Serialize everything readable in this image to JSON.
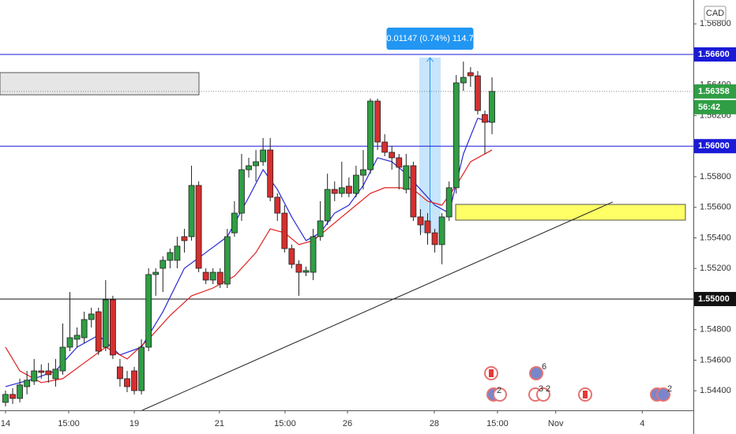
{
  "chart_data": {
    "type": "candlestick",
    "currency": "CAD",
    "xlim": [
      -0.77,
      96.14
    ],
    "xticks": [
      {
        "value": 0,
        "label": "14"
      },
      {
        "value": 8.83,
        "label": "15:00"
      },
      {
        "value": 18,
        "label": "19"
      },
      {
        "value": 29.9,
        "label": "21"
      },
      {
        "value": 39.07,
        "label": "15:00"
      },
      {
        "value": 47.8,
        "label": "26"
      },
      {
        "value": 59.93,
        "label": "28"
      },
      {
        "value": 68.76,
        "label": "15:00"
      },
      {
        "value": 76.9,
        "label": "Nov"
      },
      {
        "value": 89,
        "label": "4"
      }
    ],
    "ylim": [
      1.54272,
      1.56956
    ],
    "yticks": [
      {
        "value": 1.568,
        "label": "1.56800"
      },
      {
        "value": 1.564,
        "label": "1.56400"
      },
      {
        "value": 1.562,
        "label": "1.56200"
      },
      {
        "value": 1.558,
        "label": "1.55800"
      },
      {
        "value": 1.556,
        "label": "1.55600"
      },
      {
        "value": 1.554,
        "label": "1.55400"
      },
      {
        "value": 1.552,
        "label": "1.55200"
      },
      {
        "value": 1.548,
        "label": "1.54800"
      },
      {
        "value": 1.546,
        "label": "1.54600"
      },
      {
        "value": 1.544,
        "label": "1.54400"
      }
    ],
    "up_color": "#2f9e44",
    "down_color": "#d62f2f",
    "open": [
      1.54324,
      1.54376,
      1.5435,
      1.54427,
      1.54463,
      1.5453,
      1.5453,
      1.54479,
      1.5453,
      1.54685,
      1.54737,
      1.54747,
      1.54866,
      1.54917,
      1.54685,
      1.54995,
      1.54556,
      1.54479,
      1.5453,
      1.54401,
      1.54685,
      1.5516,
      1.55201,
      1.55253,
      1.55253,
      1.55408,
      1.55408,
      1.55743,
      1.55175,
      1.55124,
      1.55175,
      1.55098,
      1.55433,
      1.55562,
      1.55846,
      1.55872,
      1.55898,
      1.55975,
      1.55666,
      1.55562,
      1.5533,
      1.55227,
      1.55175,
      1.55175,
      1.55408,
      1.55511,
      1.55717,
      1.55691,
      1.55738,
      1.55691,
      1.5581,
      1.55846,
      1.56295,
      1.56027,
      1.5596,
      1.55924,
      1.55717,
      1.55872,
      1.55537,
      1.55511,
      1.55433,
      1.55356,
      1.55537,
      1.55728,
      1.56414,
      1.56481,
      1.5646,
      1.56207,
      1.56156
    ],
    "high": [
      1.54401,
      1.54417,
      1.54479,
      1.5453,
      1.54608,
      1.54572,
      1.54582,
      1.54608,
      1.5484,
      1.55046,
      1.54814,
      1.54917,
      1.54943,
      1.54943,
      1.55124,
      1.55021,
      1.54608,
      1.5453,
      1.54556,
      1.54737,
      1.55201,
      1.55201,
      1.55279,
      1.5533,
      1.55408,
      1.55459,
      1.55872,
      1.55769,
      1.55201,
      1.55201,
      1.55201,
      1.55459,
      1.5564,
      1.55949,
      1.55924,
      1.55975,
      1.56053,
      1.56053,
      1.55691,
      1.55614,
      1.55356,
      1.55253,
      1.55212,
      1.55459,
      1.5564,
      1.5582,
      1.55769,
      1.55898,
      1.55795,
      1.55872,
      1.55975,
      1.56311,
      1.56311,
      1.56078,
      1.56001,
      1.55949,
      1.55949,
      1.55898,
      1.55588,
      1.55562,
      1.55459,
      1.55562,
      1.55769,
      1.56465,
      1.56553,
      1.56517,
      1.56491,
      1.56233,
      1.5645
    ],
    "low": [
      1.54298,
      1.54314,
      1.54324,
      1.54376,
      1.54438,
      1.54479,
      1.54453,
      1.54427,
      1.54505,
      1.54659,
      1.54685,
      1.54711,
      1.54814,
      1.54634,
      1.54659,
      1.54608,
      1.54427,
      1.54391,
      1.54376,
      1.54376,
      1.54659,
      1.55021,
      1.55046,
      1.55201,
      1.55201,
      1.55304,
      1.55382,
      1.55175,
      1.55098,
      1.55098,
      1.55072,
      1.55072,
      1.55408,
      1.55511,
      1.55795,
      1.55769,
      1.55872,
      1.5564,
      1.55511,
      1.55304,
      1.55201,
      1.55021,
      1.5515,
      1.55124,
      1.55382,
      1.55485,
      1.5564,
      1.55666,
      1.55666,
      1.55666,
      1.55717,
      1.5582,
      1.55975,
      1.55934,
      1.55846,
      1.55717,
      1.55691,
      1.55511,
      1.55418,
      1.55356,
      1.55304,
      1.55227,
      1.55511,
      1.55691,
      1.56362,
      1.56388,
      1.56207,
      1.55949,
      1.56078
    ],
    "close": [
      1.54376,
      1.5435,
      1.54438,
      1.54469,
      1.5453,
      1.5452,
      1.54505,
      1.54541,
      1.54685,
      1.54747,
      1.54763,
      1.54866,
      1.54902,
      1.54659,
      1.54995,
      1.54634,
      1.54479,
      1.54427,
      1.54401,
      1.54685,
      1.5516,
      1.55175,
      1.55253,
      1.55304,
      1.55346,
      1.55382,
      1.55743,
      1.55201,
      1.55124,
      1.55175,
      1.55098,
      1.55408,
      1.55562,
      1.55846,
      1.55872,
      1.55898,
      1.55975,
      1.55666,
      1.55562,
      1.5533,
      1.55227,
      1.55175,
      1.55186,
      1.55408,
      1.55511,
      1.55717,
      1.55691,
      1.55728,
      1.55691,
      1.5581,
      1.55846,
      1.56295,
      1.56027,
      1.5596,
      1.55924,
      1.55862,
      1.55872,
      1.55537,
      1.55485,
      1.55433,
      1.55356,
      1.55537,
      1.55728,
      1.56414,
      1.5645,
      1.5646,
      1.56233,
      1.56156,
      1.56358
    ],
    "series": [
      {
        "type": "line",
        "color": "#2a2ad6",
        "x": [
          0,
          4,
          7,
          10,
          13,
          16,
          19,
          22,
          25,
          28,
          31,
          34,
          36,
          38,
          40,
          42,
          44,
          46,
          48,
          50,
          52,
          54,
          56,
          58,
          60,
          62,
          64,
          66,
          68
        ],
        "values": [
          1.54427,
          1.54479,
          1.5453,
          1.54685,
          1.54763,
          1.54634,
          1.54685,
          1.54917,
          1.55201,
          1.55304,
          1.55408,
          1.55666,
          1.55846,
          1.55717,
          1.55537,
          1.55382,
          1.55433,
          1.55562,
          1.55614,
          1.55743,
          1.55924,
          1.55898,
          1.5582,
          1.55717,
          1.55614,
          1.55562,
          1.55949,
          1.56182,
          1.56156
        ]
      },
      {
        "type": "line",
        "color": "#e02020",
        "x": [
          0,
          2,
          5,
          8,
          11,
          14,
          17,
          20,
          23,
          26,
          29,
          32,
          35,
          37,
          39,
          41,
          43,
          45,
          47,
          49,
          51,
          53,
          55,
          57,
          59,
          61,
          63,
          65,
          68
        ],
        "values": [
          1.54685,
          1.5453,
          1.54453,
          1.54479,
          1.54582,
          1.54685,
          1.54608,
          1.54737,
          1.54892,
          1.55021,
          1.55072,
          1.5515,
          1.55304,
          1.55459,
          1.55433,
          1.55356,
          1.55382,
          1.55459,
          1.55537,
          1.55614,
          1.55691,
          1.55728,
          1.55728,
          1.55717,
          1.5564,
          1.55614,
          1.55743,
          1.55898,
          1.55975
        ]
      }
    ],
    "hlines": [
      {
        "value": 1.566,
        "label": "1.56600",
        "color": "#1a1ad8"
      },
      {
        "value": 1.56,
        "label": "1.56000",
        "color": "#1a1ad8"
      },
      {
        "value": 1.55,
        "label": "1.55000",
        "color": "#111111"
      }
    ],
    "last_price": {
      "value": 1.56358,
      "label": "1.56358",
      "countdown": "56:42",
      "color": "#2f9e44"
    },
    "zones": [
      {
        "x": [
          -0.77,
          27.04
        ],
        "y": [
          1.56336,
          1.56481
        ],
        "color": "#e6e6e6"
      },
      {
        "x": [
          62.92,
          95.03
        ],
        "y": [
          1.55516,
          1.55619
        ],
        "color": "#ffff66"
      }
    ],
    "trendline": {
      "x": [
        19.09,
        84.88
      ],
      "y": [
        1.54272,
        1.55635
      ]
    },
    "measure": {
      "x": [
        57.84,
        60.82
      ],
      "y": [
        1.55432,
        1.56579
      ],
      "label": "0.01147 (0.74%) 114.7"
    },
    "events": [
      "6",
      "2",
      "3",
      "2",
      "2"
    ]
  }
}
